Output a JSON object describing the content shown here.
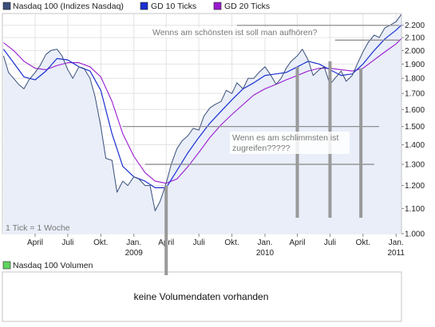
{
  "legend": {
    "items": [
      {
        "label": "Nasdaq 100 (Indizes Nasdaq)",
        "color": "#3a4f7a"
      },
      {
        "label": "GD 10 Ticks",
        "color": "#1a2fd0"
      },
      {
        "label": "GD 20 Ticks",
        "color": "#9a1ad0"
      }
    ]
  },
  "tick_note": "1 Tick = 1 Woche",
  "volume_panel": {
    "legend_label": "Nasdaq 100 Volumen",
    "legend_color": "#5fd35f",
    "message": "keine Volumendaten vorhanden"
  },
  "annotations": {
    "top_note": "Wenns am schönsten ist soll man aufhören?",
    "middle_note_line1": "Wenn es am schlimmsten ist",
    "middle_note_line2": "zugreifen?????"
  },
  "colors": {
    "price_line": "#3a4f7a",
    "gd10_line": "#1a2fd0",
    "gd20_line": "#9a1ad0",
    "area_fill": "#e9eef9",
    "grid": "#e2e2e2",
    "annotation_gray": "#999999"
  },
  "chart_data": {
    "type": "line",
    "y_scale": "log",
    "ylim": [
      1000,
      2300
    ],
    "x_range": [
      "2008-01",
      "2011-01"
    ],
    "y_ticks": [
      1000,
      1100,
      1200,
      1300,
      1400,
      1500,
      1600,
      1700,
      1800,
      1900,
      2000,
      2100,
      2200
    ],
    "y_tick_labels": [
      "1.000",
      "1.100",
      "1.200",
      "1.300",
      "1.400",
      "1.500",
      "1.600",
      "1.700",
      "1.800",
      "1.900",
      "2.000",
      "2.100",
      "2.200"
    ],
    "x_ticks": [
      {
        "date": "2008-04",
        "label": "April",
        "year": ""
      },
      {
        "date": "2008-07",
        "label": "Juli",
        "year": ""
      },
      {
        "date": "2008-10",
        "label": "Okt.",
        "year": ""
      },
      {
        "date": "2009-01",
        "label": "Jan.",
        "year": "2009"
      },
      {
        "date": "2009-04",
        "label": "April",
        "year": ""
      },
      {
        "date": "2009-07",
        "label": "Juli",
        "year": ""
      },
      {
        "date": "2009-10",
        "label": "Okt.",
        "year": ""
      },
      {
        "date": "2010-01",
        "label": "Jan.",
        "year": "2010"
      },
      {
        "date": "2010-04",
        "label": "April",
        "year": ""
      },
      {
        "date": "2010-07",
        "label": "Juli",
        "year": ""
      },
      {
        "date": "2010-10",
        "label": "Okt.",
        "year": ""
      },
      {
        "date": "2011-01",
        "label": "Jan.",
        "year": "2011"
      }
    ],
    "grid": true,
    "legend_position": "top",
    "series": [
      {
        "name": "Nasdaq 100 (Indizes Nasdaq)",
        "points": [
          [
            "2008-01-04",
            1960
          ],
          [
            "2008-01-18",
            1840
          ],
          [
            "2008-02-01",
            1800
          ],
          [
            "2008-02-15",
            1760
          ],
          [
            "2008-03-01",
            1730
          ],
          [
            "2008-03-15",
            1790
          ],
          [
            "2008-04-01",
            1840
          ],
          [
            "2008-04-15",
            1890
          ],
          [
            "2008-05-01",
            1970
          ],
          [
            "2008-05-15",
            2000
          ],
          [
            "2008-06-01",
            2010
          ],
          [
            "2008-06-15",
            1960
          ],
          [
            "2008-07-01",
            1860
          ],
          [
            "2008-07-15",
            1800
          ],
          [
            "2008-08-01",
            1880
          ],
          [
            "2008-08-15",
            1870
          ],
          [
            "2008-09-01",
            1800
          ],
          [
            "2008-09-15",
            1680
          ],
          [
            "2008-10-01",
            1500
          ],
          [
            "2008-10-15",
            1330
          ],
          [
            "2008-11-01",
            1320
          ],
          [
            "2008-11-15",
            1170
          ],
          [
            "2008-12-01",
            1220
          ],
          [
            "2008-12-15",
            1200
          ],
          [
            "2009-01-01",
            1240
          ],
          [
            "2009-01-15",
            1230
          ],
          [
            "2009-02-01",
            1200
          ],
          [
            "2009-02-15",
            1200
          ],
          [
            "2009-03-01",
            1090
          ],
          [
            "2009-03-15",
            1130
          ],
          [
            "2009-04-01",
            1210
          ],
          [
            "2009-04-15",
            1300
          ],
          [
            "2009-05-01",
            1380
          ],
          [
            "2009-05-15",
            1420
          ],
          [
            "2009-06-01",
            1450
          ],
          [
            "2009-06-15",
            1490
          ],
          [
            "2009-07-01",
            1480
          ],
          [
            "2009-07-15",
            1560
          ],
          [
            "2009-08-01",
            1610
          ],
          [
            "2009-08-15",
            1630
          ],
          [
            "2009-09-01",
            1650
          ],
          [
            "2009-09-15",
            1720
          ],
          [
            "2009-10-01",
            1700
          ],
          [
            "2009-10-15",
            1770
          ],
          [
            "2009-11-01",
            1730
          ],
          [
            "2009-11-15",
            1800
          ],
          [
            "2009-12-01",
            1800
          ],
          [
            "2009-12-15",
            1840
          ],
          [
            "2010-01-01",
            1880
          ],
          [
            "2010-01-15",
            1830
          ],
          [
            "2010-02-01",
            1760
          ],
          [
            "2010-02-15",
            1800
          ],
          [
            "2010-03-01",
            1870
          ],
          [
            "2010-03-15",
            1920
          ],
          [
            "2010-04-01",
            1960
          ],
          [
            "2010-04-15",
            2010
          ],
          [
            "2010-05-01",
            1930
          ],
          [
            "2010-05-15",
            1820
          ],
          [
            "2010-06-01",
            1860
          ],
          [
            "2010-06-15",
            1880
          ],
          [
            "2010-07-01",
            1760
          ],
          [
            "2010-07-15",
            1800
          ],
          [
            "2010-08-01",
            1850
          ],
          [
            "2010-08-15",
            1780
          ],
          [
            "2010-09-01",
            1820
          ],
          [
            "2010-09-15",
            1900
          ],
          [
            "2010-10-01",
            1990
          ],
          [
            "2010-10-15",
            2060
          ],
          [
            "2010-11-01",
            2120
          ],
          [
            "2010-11-15",
            2100
          ],
          [
            "2010-12-01",
            2180
          ],
          [
            "2010-12-15",
            2200
          ],
          [
            "2011-01-01",
            2230
          ],
          [
            "2011-01-15",
            2290
          ]
        ]
      },
      {
        "name": "GD 10 Ticks",
        "points": [
          [
            "2008-01-04",
            2010
          ],
          [
            "2008-02-01",
            1910
          ],
          [
            "2008-03-01",
            1810
          ],
          [
            "2008-04-01",
            1790
          ],
          [
            "2008-05-01",
            1850
          ],
          [
            "2008-06-01",
            1940
          ],
          [
            "2008-07-01",
            1930
          ],
          [
            "2008-08-01",
            1880
          ],
          [
            "2008-09-01",
            1850
          ],
          [
            "2008-10-01",
            1720
          ],
          [
            "2008-11-01",
            1460
          ],
          [
            "2008-12-01",
            1290
          ],
          [
            "2009-01-01",
            1240
          ],
          [
            "2009-02-01",
            1220
          ],
          [
            "2009-03-01",
            1190
          ],
          [
            "2009-04-01",
            1190
          ],
          [
            "2009-05-01",
            1270
          ],
          [
            "2009-06-01",
            1360
          ],
          [
            "2009-07-01",
            1440
          ],
          [
            "2009-08-01",
            1520
          ],
          [
            "2009-09-01",
            1590
          ],
          [
            "2009-10-01",
            1660
          ],
          [
            "2009-11-01",
            1730
          ],
          [
            "2009-12-01",
            1770
          ],
          [
            "2010-01-01",
            1820
          ],
          [
            "2010-02-01",
            1830
          ],
          [
            "2010-03-01",
            1840
          ],
          [
            "2010-04-01",
            1880
          ],
          [
            "2010-05-01",
            1920
          ],
          [
            "2010-06-01",
            1900
          ],
          [
            "2010-07-01",
            1860
          ],
          [
            "2010-08-01",
            1820
          ],
          [
            "2010-09-01",
            1830
          ],
          [
            "2010-10-01",
            1900
          ],
          [
            "2010-11-01",
            2000
          ],
          [
            "2010-12-01",
            2090
          ],
          [
            "2011-01-01",
            2160
          ],
          [
            "2011-01-15",
            2200
          ]
        ]
      },
      {
        "name": "GD 20 Ticks",
        "points": [
          [
            "2008-01-04",
            2060
          ],
          [
            "2008-02-01",
            2000
          ],
          [
            "2008-03-01",
            1920
          ],
          [
            "2008-04-01",
            1870
          ],
          [
            "2008-05-01",
            1860
          ],
          [
            "2008-06-01",
            1890
          ],
          [
            "2008-07-01",
            1910
          ],
          [
            "2008-08-01",
            1910
          ],
          [
            "2008-09-01",
            1880
          ],
          [
            "2008-10-01",
            1810
          ],
          [
            "2008-11-01",
            1650
          ],
          [
            "2008-12-01",
            1460
          ],
          [
            "2009-01-01",
            1340
          ],
          [
            "2009-02-01",
            1260
          ],
          [
            "2009-03-01",
            1220
          ],
          [
            "2009-04-01",
            1210
          ],
          [
            "2009-05-01",
            1230
          ],
          [
            "2009-06-01",
            1290
          ],
          [
            "2009-07-01",
            1360
          ],
          [
            "2009-08-01",
            1440
          ],
          [
            "2009-09-01",
            1510
          ],
          [
            "2009-10-01",
            1570
          ],
          [
            "2009-11-01",
            1630
          ],
          [
            "2009-12-01",
            1690
          ],
          [
            "2010-01-01",
            1730
          ],
          [
            "2010-02-01",
            1760
          ],
          [
            "2010-03-01",
            1790
          ],
          [
            "2010-04-01",
            1820
          ],
          [
            "2010-05-01",
            1850
          ],
          [
            "2010-06-01",
            1870
          ],
          [
            "2010-07-01",
            1870
          ],
          [
            "2010-08-01",
            1860
          ],
          [
            "2010-09-01",
            1850
          ],
          [
            "2010-10-01",
            1870
          ],
          [
            "2010-11-01",
            1930
          ],
          [
            "2010-12-01",
            1990
          ],
          [
            "2011-01-01",
            2050
          ],
          [
            "2011-01-15",
            2090
          ]
        ]
      }
    ],
    "reference_lines": [
      {
        "y": 2200,
        "from": "2009-10-15",
        "to": "2011-01-10"
      },
      {
        "y": 2080,
        "from": "2010-07-15",
        "to": "2011-01-10"
      },
      {
        "y": 1500,
        "from": "2008-12-01",
        "to": "2010-11-15"
      },
      {
        "y": 1300,
        "from": "2009-02-01",
        "to": "2010-11-01"
      }
    ],
    "markers": [
      {
        "date": "2009-04-01",
        "top_value": 1200,
        "extends_to_volume_panel": true
      },
      {
        "date": "2010-04-01",
        "top_value": 1880,
        "extends_to_volume_panel": false
      },
      {
        "date": "2010-07-01",
        "top_value": 1920,
        "extends_to_volume_panel": false
      },
      {
        "date": "2010-09-25",
        "top_value": 1870,
        "extends_to_volume_panel": false
      }
    ]
  }
}
